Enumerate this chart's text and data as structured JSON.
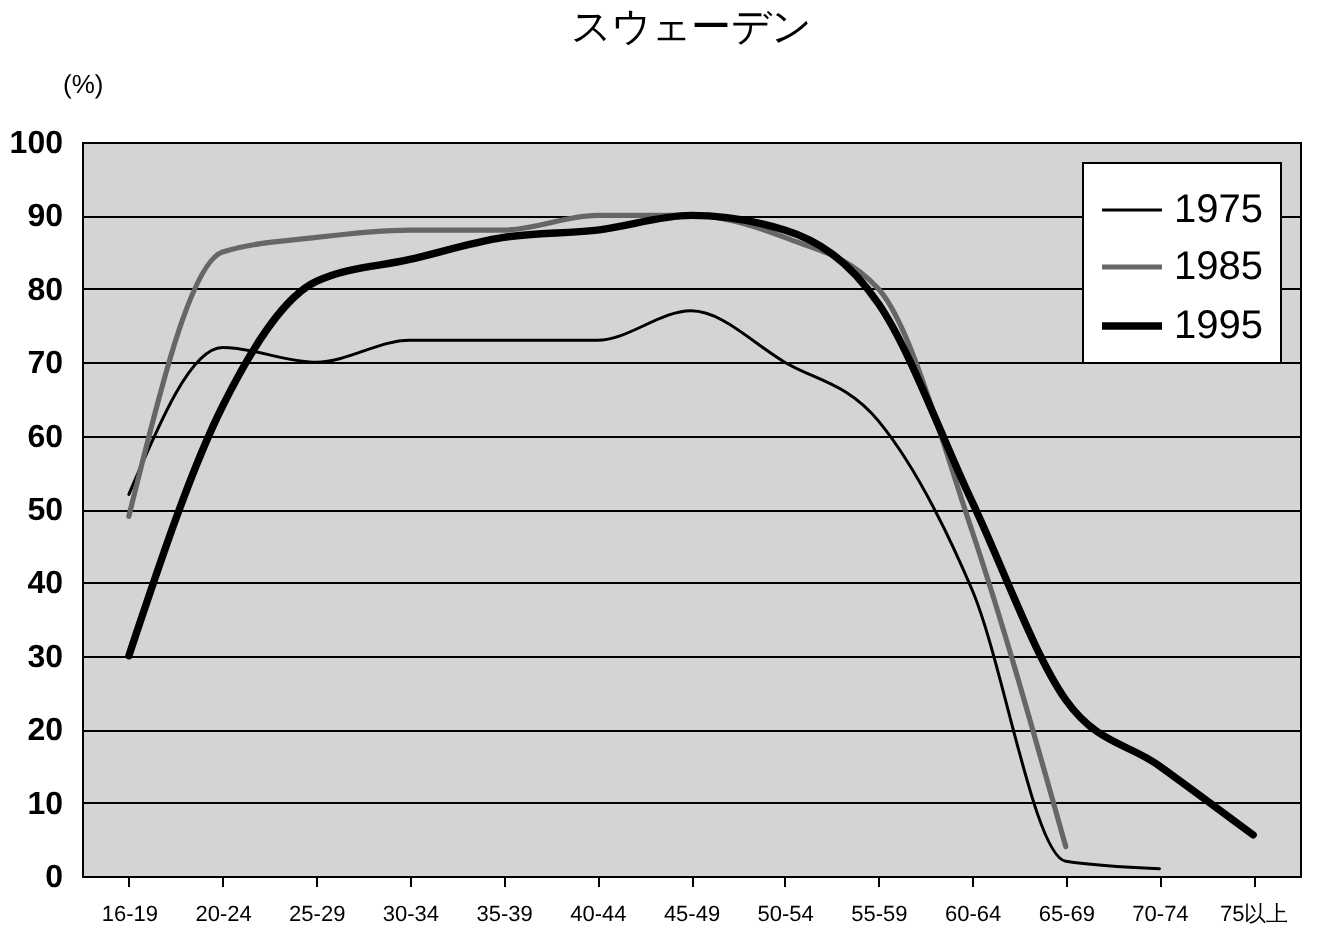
{
  "chart_data": {
    "type": "line",
    "title": "スウェーデン",
    "ylabel": "(%)",
    "categories": [
      "16-19",
      "20-24",
      "25-29",
      "30-34",
      "35-39",
      "40-44",
      "45-49",
      "50-54",
      "55-59",
      "60-64",
      "65-69",
      "70-74",
      "75以上"
    ],
    "series": [
      {
        "name": "1975",
        "color": "#000000",
        "values": [
          52,
          72,
          70,
          73,
          73,
          73,
          77,
          70,
          62,
          39,
          2,
          1,
          null
        ]
      },
      {
        "name": "1985",
        "color": "#666666",
        "values": [
          49,
          85,
          87,
          88,
          88,
          90,
          90,
          87,
          80,
          47,
          4,
          null,
          null
        ]
      },
      {
        "name": "1995",
        "color": "#000000",
        "values": [
          30,
          64,
          81,
          84,
          87,
          88,
          90,
          88,
          78,
          51,
          24,
          15,
          5.6
        ]
      }
    ],
    "ylim": [
      0,
      100
    ],
    "yticks": [
      0,
      10,
      20,
      30,
      40,
      50,
      60,
      70,
      80,
      90,
      100
    ],
    "grid": "y",
    "legend": "top right",
    "line_style": "solid",
    "marker": "none"
  }
}
